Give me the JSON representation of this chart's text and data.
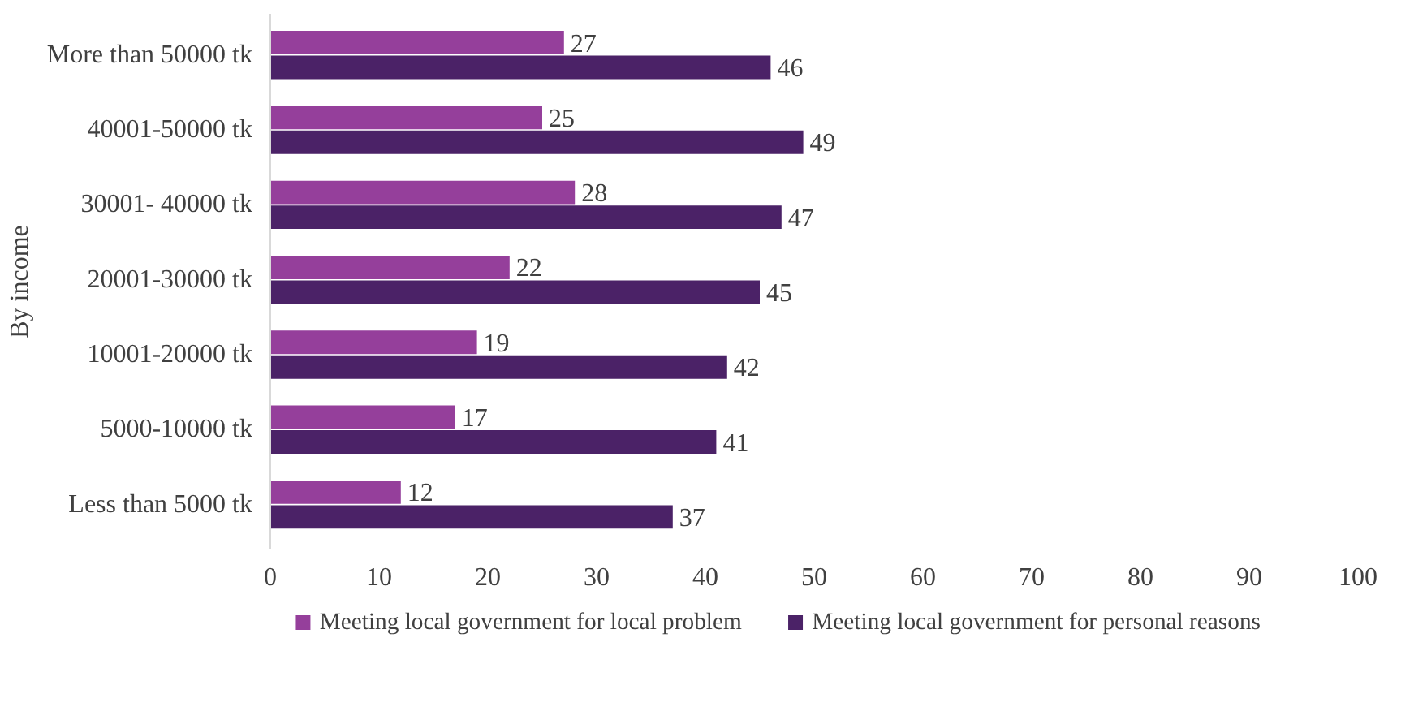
{
  "chart_data": {
    "type": "bar",
    "orientation": "horizontal",
    "ylabel": "By income",
    "categories": [
      "More than 50000 tk",
      "40001-50000 tk",
      "30001- 40000 tk",
      "20001-30000 tk",
      "10001-20000 tk",
      "5000-10000 tk",
      "Less than 5000 tk"
    ],
    "series": [
      {
        "name": "Meeting local government for local problem",
        "color": "#953f9b",
        "values": [
          27,
          25,
          28,
          22,
          19,
          17,
          12
        ]
      },
      {
        "name": "Meeting local government for personal reasons",
        "color": "#4b2267",
        "values": [
          46,
          49,
          47,
          45,
          42,
          41,
          37
        ]
      }
    ],
    "xlim": [
      0,
      100
    ],
    "xticks": [
      0,
      10,
      20,
      30,
      40,
      50,
      60,
      70,
      80,
      90,
      100
    ],
    "data_labels": true,
    "grid": false,
    "legend": "bottom"
  }
}
